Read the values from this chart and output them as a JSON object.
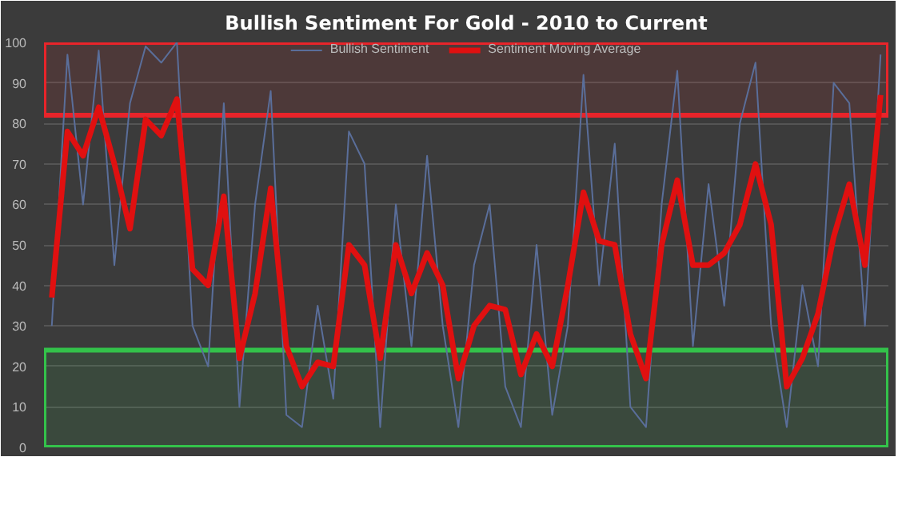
{
  "chart_data": {
    "type": "line",
    "title": "Bullish Sentiment For Gold - 2010 to Current",
    "categories": [
      null,
      null,
      null,
      null,
      null,
      null,
      null,
      null,
      null,
      null,
      null,
      null,
      null,
      null,
      null,
      null,
      null,
      null,
      null,
      null,
      null,
      null,
      null,
      null,
      null,
      null,
      null,
      null,
      null,
      null,
      null,
      null,
      null,
      null,
      null,
      null,
      null,
      null,
      null,
      null,
      null,
      null,
      null,
      null,
      null,
      null,
      null,
      null,
      null,
      null,
      null,
      null,
      null,
      null
    ],
    "series": [
      {
        "name": "Bullish Sentiment",
        "color": "#5a6e9a",
        "values": [
          30,
          97,
          60,
          98,
          45,
          85,
          99,
          95,
          100,
          30,
          20,
          85,
          10,
          60,
          88,
          8,
          5,
          35,
          12,
          78,
          70,
          5,
          60,
          25,
          72,
          30,
          5,
          45,
          60,
          15,
          5,
          50,
          8,
          30,
          92,
          40,
          75,
          10,
          5,
          60,
          93,
          25,
          65,
          35,
          80,
          95,
          30,
          5,
          40,
          20,
          90,
          85,
          30,
          97
        ]
      },
      {
        "name": "Sentiment Moving Average",
        "color": "#e01010",
        "values": [
          37,
          78,
          72,
          84,
          70,
          54,
          81,
          77,
          86,
          44,
          40,
          62,
          22,
          38,
          64,
          25,
          15,
          21,
          20,
          50,
          45,
          22,
          50,
          38,
          48,
          40,
          17,
          30,
          35,
          34,
          18,
          28,
          20,
          40,
          63,
          51,
          50,
          28,
          17,
          50,
          66,
          45,
          45,
          48,
          55,
          70,
          55,
          15,
          22,
          33,
          52,
          65,
          45,
          87
        ]
      }
    ],
    "ylim": [
      0,
      100
    ],
    "yticks": [
      0,
      10,
      20,
      30,
      40,
      50,
      60,
      70,
      80,
      90,
      100
    ],
    "grid": "y",
    "legend": "top",
    "tick_labels": "y",
    "bands": [
      {
        "axis": "y",
        "from": 82,
        "to": 100,
        "label": null,
        "color": "#e8242a"
      },
      {
        "axis": "y",
        "from": 0,
        "to": 24,
        "label": null,
        "color": "#33c24a"
      }
    ]
  }
}
